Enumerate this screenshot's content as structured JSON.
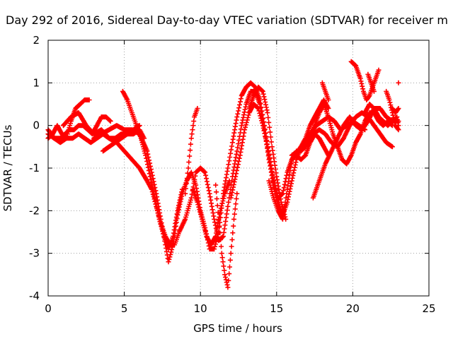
{
  "chart_data": {
    "type": "scatter",
    "title": "Day 292 of 2016, Sidereal Day-to-day VTEC variation (SDTVAR) for receiver m",
    "xlabel": "GPS time / hours",
    "ylabel": "SDTVAR / TECUs",
    "xlim": [
      0,
      25
    ],
    "ylim": [
      -4,
      2
    ],
    "xticks": [
      "0",
      "5",
      "10",
      "15",
      "20",
      "25"
    ],
    "yticks": [
      "-4",
      "-3",
      "-2",
      "-1",
      "0",
      "1",
      "2"
    ],
    "grid": true,
    "legend": "none",
    "marker": "plus",
    "color": "#ff0000",
    "series": [
      {
        "values": [
          [
            0.0,
            -0.3
          ],
          [
            0.3,
            -0.2
          ],
          [
            0.6,
            0.0
          ],
          [
            0.9,
            -0.2
          ],
          [
            1.2,
            -0.3
          ],
          [
            1.5,
            0.1
          ],
          [
            1.8,
            0.4
          ],
          [
            2.1,
            0.5
          ],
          [
            2.4,
            0.6
          ],
          [
            2.7,
            0.6
          ]
        ]
      },
      {
        "values": [
          [
            0.0,
            -0.1
          ],
          [
            0.4,
            -0.3
          ],
          [
            0.8,
            -0.3
          ],
          [
            1.1,
            -0.2
          ],
          [
            1.4,
            -0.1
          ],
          [
            1.7,
            -0.1
          ],
          [
            2.0,
            0.0
          ],
          [
            2.3,
            0.0
          ],
          [
            2.6,
            -0.1
          ],
          [
            2.9,
            -0.2
          ],
          [
            3.2,
            0.0
          ],
          [
            3.5,
            0.2
          ],
          [
            3.8,
            0.2
          ],
          [
            4.1,
            0.1
          ]
        ]
      },
      {
        "values": [
          [
            0.0,
            -0.2
          ],
          [
            0.4,
            -0.3
          ],
          [
            0.8,
            -0.4
          ],
          [
            1.2,
            -0.3
          ],
          [
            1.6,
            -0.3
          ],
          [
            2.0,
            -0.2
          ],
          [
            2.4,
            -0.3
          ],
          [
            2.8,
            -0.4
          ],
          [
            3.2,
            -0.3
          ],
          [
            3.6,
            -0.2
          ],
          [
            4.0,
            -0.3
          ],
          [
            4.4,
            -0.3
          ],
          [
            4.8,
            -0.2
          ],
          [
            5.2,
            -0.2
          ],
          [
            5.6,
            -0.2
          ],
          [
            6.0,
            -0.1
          ],
          [
            6.3,
            -0.3
          ]
        ]
      },
      {
        "values": [
          [
            1.0,
            0.0
          ],
          [
            1.5,
            0.2
          ],
          [
            2.0,
            0.3
          ],
          [
            2.5,
            0.0
          ],
          [
            3.0,
            -0.2
          ],
          [
            3.5,
            -0.1
          ],
          [
            4.0,
            -0.3
          ],
          [
            4.5,
            -0.4
          ],
          [
            5.0,
            -0.6
          ],
          [
            5.5,
            -0.8
          ],
          [
            6.0,
            -1.0
          ],
          [
            6.5,
            -1.3
          ],
          [
            6.8,
            -1.5
          ],
          [
            7.1,
            -1.9
          ],
          [
            7.4,
            -2.3
          ],
          [
            7.7,
            -2.6
          ],
          [
            8.0,
            -2.8
          ],
          [
            8.3,
            -2.8
          ],
          [
            8.6,
            -2.5
          ],
          [
            9.0,
            -2.2
          ],
          [
            9.4,
            -1.7
          ],
          [
            9.7,
            -1.1
          ],
          [
            10.0,
            -1.0
          ],
          [
            10.3,
            -1.1
          ],
          [
            10.6,
            -1.6
          ],
          [
            10.9,
            -2.2
          ],
          [
            11.2,
            -2.7
          ],
          [
            11.5,
            -2.6
          ],
          [
            11.8,
            -1.9
          ],
          [
            12.1,
            -1.2
          ],
          [
            12.4,
            -0.6
          ],
          [
            12.7,
            0.0
          ],
          [
            13.0,
            0.5
          ],
          [
            13.3,
            0.8
          ],
          [
            13.6,
            0.8
          ],
          [
            13.9,
            0.5
          ],
          [
            14.2,
            -0.1
          ],
          [
            14.5,
            -0.8
          ],
          [
            14.8,
            -1.4
          ],
          [
            15.1,
            -1.9
          ],
          [
            15.4,
            -2.1
          ],
          [
            15.7,
            -1.8
          ],
          [
            16.0,
            -1.3
          ],
          [
            16.3,
            -0.8
          ],
          [
            16.6,
            -0.5
          ],
          [
            16.9,
            -0.3
          ],
          [
            17.2,
            0.0
          ],
          [
            17.5,
            0.2
          ],
          [
            17.8,
            0.4
          ],
          [
            18.1,
            0.6
          ],
          [
            18.4,
            0.4
          ]
        ]
      },
      {
        "values": [
          [
            3.0,
            -0.3
          ],
          [
            3.5,
            -0.2
          ],
          [
            4.0,
            -0.1
          ],
          [
            4.5,
            0.0
          ],
          [
            5.0,
            -0.1
          ],
          [
            5.5,
            -0.1
          ],
          [
            6.0,
            -0.2
          ],
          [
            6.5,
            -0.6
          ],
          [
            6.8,
            -1.1
          ],
          [
            7.1,
            -1.6
          ],
          [
            7.4,
            -2.2
          ],
          [
            7.7,
            -2.8
          ],
          [
            7.9,
            -3.2
          ],
          [
            8.2,
            -2.8
          ],
          [
            8.5,
            -2.1
          ],
          [
            8.8,
            -1.6
          ],
          [
            9.1,
            -1.3
          ],
          [
            9.4,
            -1.1
          ],
          [
            9.7,
            -1.4
          ],
          [
            10.0,
            -2.0
          ],
          [
            10.3,
            -2.4
          ],
          [
            10.6,
            -2.9
          ],
          [
            10.9,
            -2.9
          ],
          [
            11.2,
            -2.5
          ],
          [
            11.5,
            -1.6
          ],
          [
            11.8,
            -1.0
          ],
          [
            12.1,
            -0.4
          ],
          [
            12.4,
            0.2
          ],
          [
            12.7,
            0.7
          ],
          [
            13.0,
            0.9
          ],
          [
            13.3,
            1.0
          ],
          [
            13.6,
            0.9
          ],
          [
            13.9,
            0.6
          ],
          [
            14.2,
            0.0
          ],
          [
            14.5,
            -0.7
          ],
          [
            14.8,
            -1.3
          ],
          [
            15.1,
            -1.7
          ],
          [
            15.4,
            -1.6
          ],
          [
            15.7,
            -1.1
          ],
          [
            16.0,
            -0.8
          ],
          [
            16.3,
            -0.7
          ],
          [
            16.6,
            -0.8
          ],
          [
            16.9,
            -0.7
          ],
          [
            17.2,
            -0.4
          ],
          [
            17.5,
            -0.2
          ],
          [
            17.8,
            -0.3
          ],
          [
            18.1,
            -0.5
          ],
          [
            18.4,
            -0.7
          ]
        ]
      },
      {
        "values": [
          [
            3.6,
            -0.6
          ],
          [
            4.0,
            -0.5
          ],
          [
            4.4,
            -0.4
          ],
          [
            4.8,
            -0.3
          ],
          [
            5.2,
            -0.2
          ],
          [
            5.6,
            -0.1
          ],
          [
            6.0,
            0.0
          ]
        ]
      },
      {
        "values": [
          [
            4.9,
            0.8
          ],
          [
            5.2,
            0.6
          ],
          [
            5.5,
            0.3
          ],
          [
            5.8,
            0.0
          ],
          [
            6.1,
            -0.3
          ],
          [
            6.4,
            -0.7
          ],
          [
            6.7,
            -1.2
          ],
          [
            7.0,
            -1.7
          ],
          [
            7.3,
            -2.2
          ],
          [
            7.6,
            -2.6
          ],
          [
            7.9,
            -2.9
          ],
          [
            8.2,
            -2.6
          ],
          [
            8.5,
            -2.0
          ],
          [
            8.8,
            -1.5
          ]
        ]
      },
      {
        "values": [
          [
            9.0,
            -1.6
          ],
          [
            9.2,
            -1.0
          ],
          [
            9.4,
            -0.3
          ],
          [
            9.6,
            0.2
          ],
          [
            9.8,
            0.4
          ]
        ]
      },
      {
        "values": [
          [
            9.5,
            -1.5
          ],
          [
            9.8,
            -1.8
          ],
          [
            10.1,
            -2.2
          ],
          [
            10.4,
            -2.6
          ],
          [
            10.7,
            -2.8
          ],
          [
            11.0,
            -2.6
          ],
          [
            11.3,
            -2.0
          ],
          [
            11.6,
            -1.6
          ],
          [
            11.9,
            -1.3
          ]
        ]
      },
      {
        "values": [
          [
            11.0,
            -1.4
          ],
          [
            11.2,
            -2.2
          ],
          [
            11.4,
            -3.0
          ],
          [
            11.6,
            -3.5
          ],
          [
            11.8,
            -3.8
          ],
          [
            12.0,
            -3.0
          ],
          [
            12.2,
            -2.2
          ],
          [
            12.4,
            -1.6
          ]
        ]
      },
      {
        "values": [
          [
            12.0,
            -1.7
          ],
          [
            12.3,
            -1.2
          ],
          [
            12.6,
            -0.7
          ],
          [
            12.9,
            -0.1
          ],
          [
            13.2,
            0.3
          ],
          [
            13.5,
            0.5
          ],
          [
            13.8,
            0.4
          ],
          [
            14.1,
            0.0
          ],
          [
            14.4,
            -0.5
          ],
          [
            14.7,
            -1.1
          ],
          [
            15.0,
            -1.6
          ],
          [
            15.3,
            -2.0
          ]
        ]
      },
      {
        "values": [
          [
            13.2,
            0.4
          ],
          [
            13.5,
            0.7
          ],
          [
            13.8,
            0.9
          ],
          [
            14.1,
            0.8
          ],
          [
            14.4,
            0.3
          ],
          [
            14.7,
            -0.5
          ],
          [
            15.0,
            -1.2
          ],
          [
            15.3,
            -1.8
          ],
          [
            15.6,
            -2.2
          ]
        ]
      },
      {
        "values": [
          [
            14.5,
            -1.3
          ],
          [
            14.8,
            -1.7
          ],
          [
            15.1,
            -2.0
          ],
          [
            15.4,
            -2.2
          ],
          [
            15.7,
            -1.5
          ],
          [
            16.0,
            -0.8
          ],
          [
            16.3,
            -0.6
          ],
          [
            16.6,
            -0.6
          ],
          [
            16.9,
            -0.5
          ],
          [
            17.2,
            -0.3
          ],
          [
            17.5,
            0.0
          ],
          [
            17.8,
            0.3
          ],
          [
            18.1,
            0.5
          ],
          [
            18.4,
            0.2
          ],
          [
            18.7,
            -0.2
          ],
          [
            19.0,
            -0.5
          ],
          [
            19.3,
            -0.8
          ],
          [
            19.6,
            -0.9
          ],
          [
            19.9,
            -0.7
          ],
          [
            20.2,
            -0.4
          ],
          [
            20.5,
            -0.2
          ],
          [
            20.8,
            0.1
          ],
          [
            21.1,
            0.3
          ],
          [
            21.4,
            0.3
          ],
          [
            21.7,
            0.1
          ],
          [
            22.0,
            0.0
          ],
          [
            22.3,
            0.1
          ],
          [
            22.6,
            0.0
          ]
        ]
      },
      {
        "values": [
          [
            16.0,
            -0.7
          ],
          [
            16.4,
            -0.6
          ],
          [
            16.8,
            -0.4
          ],
          [
            17.2,
            -0.2
          ],
          [
            17.6,
            0.0
          ],
          [
            18.0,
            0.1
          ],
          [
            18.4,
            0.2
          ],
          [
            18.8,
            0.1
          ],
          [
            19.2,
            -0.1
          ],
          [
            19.6,
            0.0
          ],
          [
            20.0,
            0.1
          ],
          [
            20.4,
            0.0
          ],
          [
            20.8,
            -0.1
          ]
        ]
      },
      {
        "values": [
          [
            17.0,
            -0.4
          ],
          [
            17.4,
            -0.2
          ],
          [
            17.8,
            -0.1
          ],
          [
            18.2,
            -0.2
          ],
          [
            18.6,
            -0.4
          ],
          [
            19.0,
            -0.5
          ],
          [
            19.4,
            -0.3
          ],
          [
            19.8,
            0.0
          ],
          [
            20.2,
            0.2
          ],
          [
            20.6,
            0.3
          ],
          [
            21.0,
            0.2
          ],
          [
            21.4,
            0.0
          ],
          [
            21.8,
            -0.2
          ],
          [
            22.2,
            -0.4
          ],
          [
            22.6,
            -0.5
          ]
        ]
      },
      {
        "values": [
          [
            17.4,
            -1.7
          ],
          [
            17.8,
            -1.3
          ],
          [
            18.2,
            -0.9
          ],
          [
            18.6,
            -0.6
          ],
          [
            19.0,
            -0.3
          ],
          [
            19.4,
            0.0
          ],
          [
            19.8,
            0.2
          ],
          [
            20.2,
            0.0
          ],
          [
            20.6,
            -0.1
          ],
          [
            21.0,
            0.1
          ],
          [
            21.4,
            0.4
          ],
          [
            21.8,
            0.4
          ],
          [
            22.2,
            0.2
          ],
          [
            22.6,
            0.1
          ],
          [
            23.0,
            0.1
          ]
        ]
      },
      {
        "values": [
          [
            18.0,
            1.0
          ],
          [
            18.2,
            0.8
          ],
          [
            18.4,
            0.6
          ]
        ]
      },
      {
        "values": [
          [
            19.9,
            1.5
          ],
          [
            20.2,
            1.4
          ],
          [
            20.5,
            1.1
          ],
          [
            20.7,
            0.8
          ],
          [
            20.9,
            0.6
          ],
          [
            21.1,
            0.7
          ],
          [
            21.3,
            0.9
          ],
          [
            21.5,
            1.1
          ],
          [
            21.7,
            1.3
          ]
        ]
      },
      {
        "values": [
          [
            20.8,
            0.3
          ],
          [
            21.1,
            0.5
          ],
          [
            21.4,
            0.4
          ],
          [
            21.7,
            0.2
          ],
          [
            22.0,
            0.1
          ],
          [
            22.3,
            0.0
          ],
          [
            22.6,
            0.1
          ],
          [
            22.9,
            0.2
          ],
          [
            23.0,
            0.0
          ]
        ]
      },
      {
        "values": [
          [
            21.0,
            1.2
          ],
          [
            21.2,
            1.0
          ],
          [
            21.4,
            0.8
          ]
        ]
      },
      {
        "values": [
          [
            22.2,
            0.8
          ],
          [
            22.4,
            0.6
          ],
          [
            22.6,
            0.3
          ],
          [
            22.8,
            0.0
          ],
          [
            23.0,
            -0.1
          ]
        ]
      },
      {
        "values": [
          [
            22.6,
            0.4
          ],
          [
            22.8,
            0.3
          ],
          [
            23.0,
            0.4
          ],
          [
            23.0,
            1.0
          ]
        ]
      }
    ]
  }
}
